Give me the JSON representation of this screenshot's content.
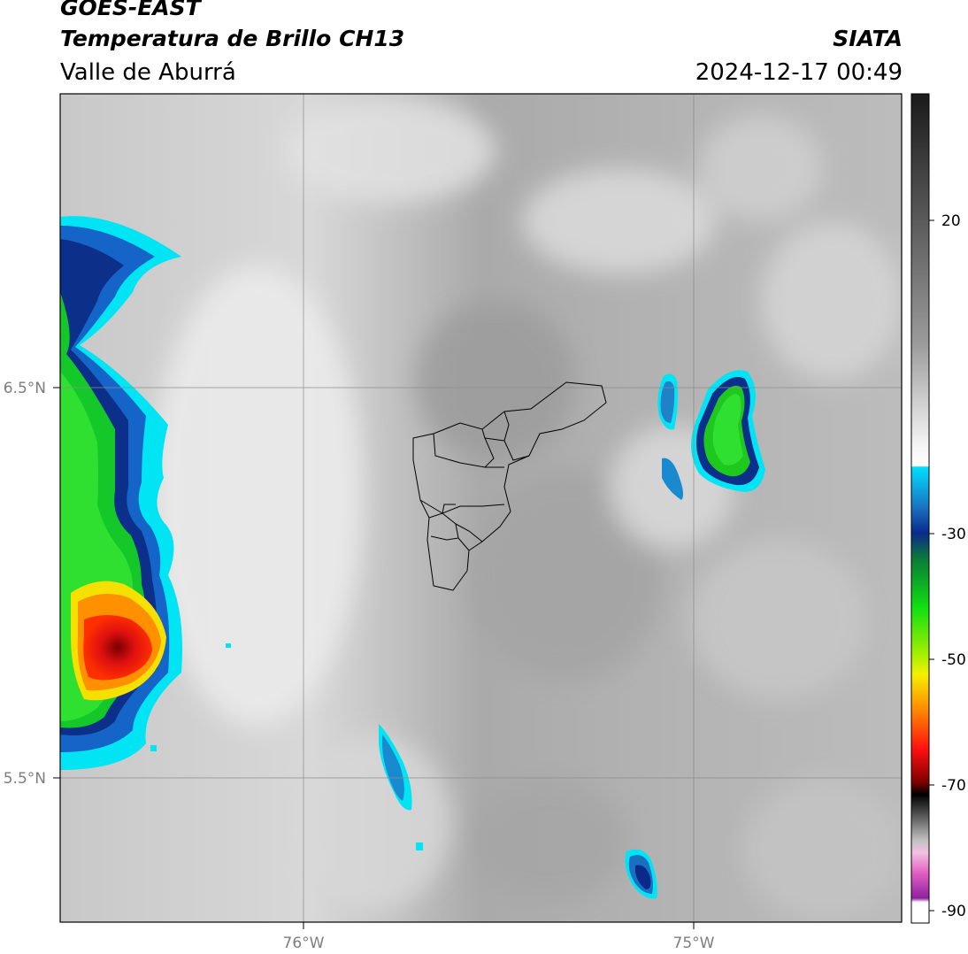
{
  "header": {
    "satellite": "GOES-EAST",
    "product": "Temperatura de Brillo CH13",
    "region": "Valle de Aburrá",
    "agency": "SIATA",
    "datetime": "2024-12-17 00:49"
  },
  "map": {
    "lat_labels": [
      "6.5°N",
      "5.5°N"
    ],
    "lon_labels": [
      "76°W",
      "75°W"
    ]
  },
  "colorbar": {
    "tick_labels": [
      "20",
      "-30",
      "-50",
      "-70",
      "-90"
    ]
  }
}
